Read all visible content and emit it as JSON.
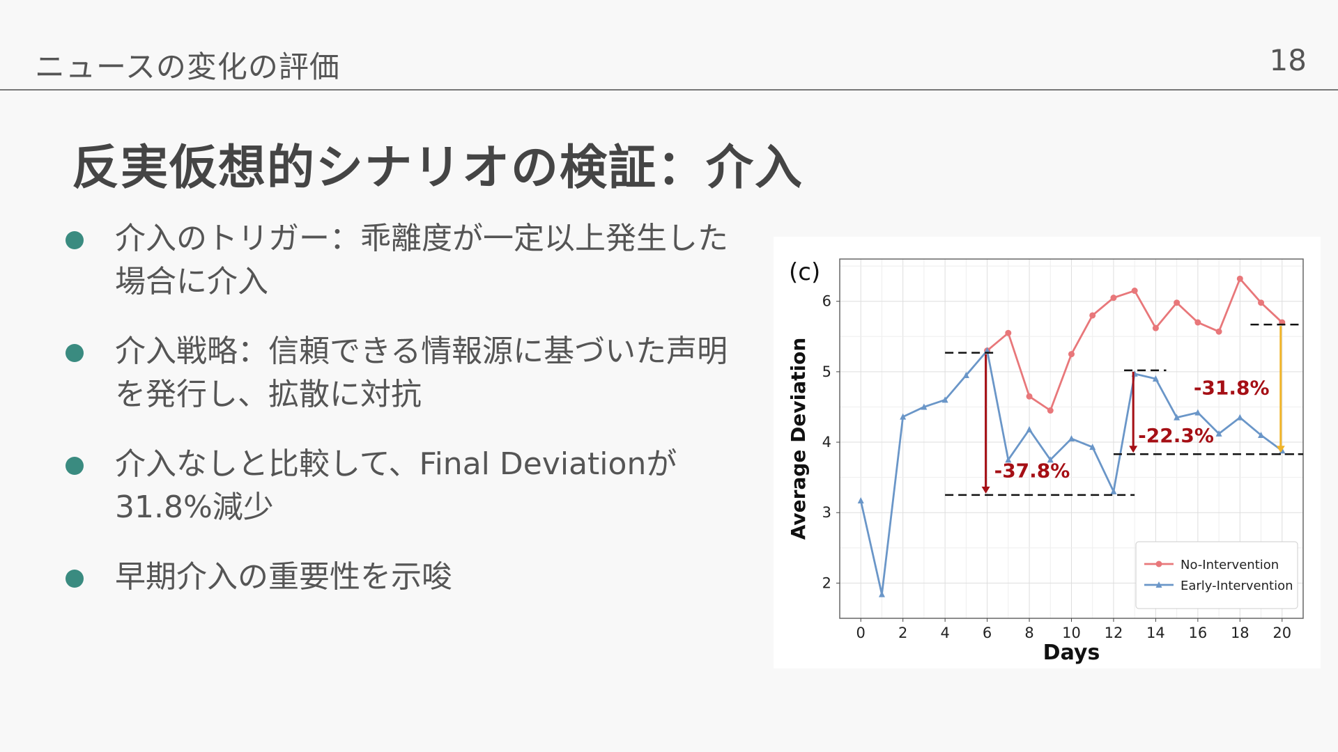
{
  "header": {
    "title": "ニュースの変化の評価",
    "page_number": "18"
  },
  "slide": {
    "title": "反実仮想的シナリオの検証：介入"
  },
  "bullets": [
    {
      "text": "介入のトリガー：乖離度が一定以上発生した場合に介入"
    },
    {
      "text": "介入戦略：信頼できる情報源に基づいた声明を発行し、拡散に対抗"
    },
    {
      "text": "介入なしと比較して、Final Deviationが31.8%減少"
    },
    {
      "text": "早期介入の重要性を示唆"
    }
  ],
  "colors": {
    "bullet": "#3a8b80",
    "series_red": "#e8777a",
    "series_blue": "#6a96c8",
    "annotation_red": "#a50f15",
    "annotation_yellow": "#f0b429"
  },
  "chart_data": {
    "type": "line",
    "panel_label": "(c)",
    "xlabel": "Days",
    "ylabel": "Average Deviation",
    "xlim": [
      -1,
      21
    ],
    "ylim": [
      1.5,
      6.6
    ],
    "xticks": [
      0,
      2,
      4,
      6,
      8,
      10,
      12,
      14,
      16,
      18,
      20
    ],
    "yticks": [
      2,
      3,
      4,
      5,
      6
    ],
    "grid": true,
    "legend": "bottom-right",
    "series": [
      {
        "name": "No-Intervention",
        "color": "#e8777a",
        "marker": "circle",
        "x": [
          6,
          7,
          8,
          9,
          10,
          11,
          12,
          13,
          14,
          15,
          16,
          17,
          18,
          19,
          20
        ],
        "y": [
          5.3,
          5.55,
          4.65,
          4.45,
          5.25,
          5.8,
          6.05,
          6.15,
          5.62,
          5.98,
          5.7,
          5.57,
          6.32,
          5.98,
          5.7
        ]
      },
      {
        "name": "Early-Intervention",
        "color": "#6a96c8",
        "marker": "triangle",
        "x": [
          0,
          1,
          2,
          3,
          4,
          5,
          6,
          7,
          8,
          9,
          10,
          11,
          12,
          13,
          14,
          15,
          16,
          17,
          18,
          19,
          20
        ],
        "y": [
          3.17,
          1.84,
          4.36,
          4.5,
          4.6,
          4.95,
          5.3,
          3.75,
          4.18,
          3.75,
          4.05,
          3.93,
          3.3,
          4.97,
          4.9,
          4.35,
          4.42,
          4.12,
          4.35,
          4.1,
          3.88
        ]
      }
    ],
    "annotations": [
      {
        "label": "-37.8%",
        "x": 6,
        "from": 5.25,
        "to": 3.27,
        "color": "#a50f15",
        "top_dash": [
          4,
          6.5
        ],
        "bottom_dash": [
          4,
          13
        ]
      },
      {
        "label": "-22.3%",
        "x": 13,
        "from": 5.0,
        "to": 3.85,
        "color": "#a50f15",
        "top_dash": [
          12.5,
          14.5
        ],
        "bottom_dash": [
          12,
          21
        ]
      },
      {
        "label": "-31.8%",
        "x": 20,
        "from": 5.65,
        "to": 3.85,
        "color": "#f0b429",
        "top_dash": [
          18.5,
          21
        ]
      }
    ]
  }
}
